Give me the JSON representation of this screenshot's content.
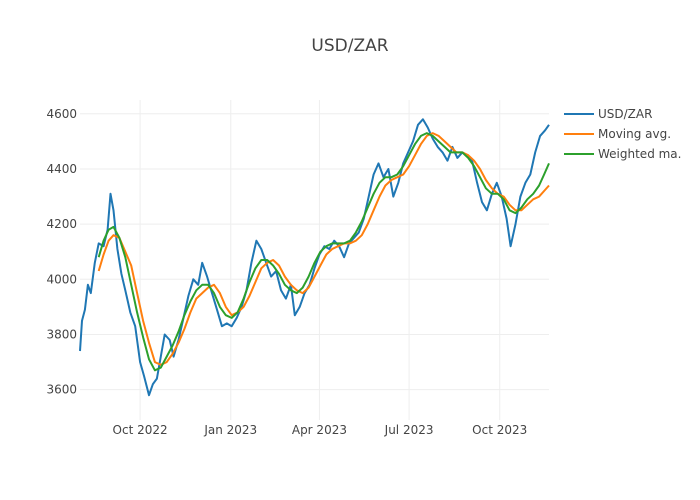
{
  "chart_data": {
    "type": "line",
    "title": "USD/ZAR",
    "xlabel": "",
    "ylabel": "",
    "x_range": [
      "2022-08-01",
      "2023-11-20"
    ],
    "ylim": [
      3490,
      4650
    ],
    "grid": true,
    "legend_position": "top-right",
    "x_ticks": [
      {
        "date": "2022-10-01",
        "label": "Oct 2022"
      },
      {
        "date": "2023-01-01",
        "label": "Jan 2023"
      },
      {
        "date": "2023-04-01",
        "label": "Apr 2023"
      },
      {
        "date": "2023-07-01",
        "label": "Jul 2023"
      },
      {
        "date": "2023-10-01",
        "label": "Oct 2023"
      }
    ],
    "y_ticks": [
      3600,
      3800,
      4000,
      4200,
      4400,
      4600
    ],
    "series": [
      {
        "name": "USD/ZAR",
        "color": "#1f77b4",
        "points": [
          [
            "2022-08-01",
            3740
          ],
          [
            "2022-08-03",
            3850
          ],
          [
            "2022-08-06",
            3890
          ],
          [
            "2022-08-09",
            3980
          ],
          [
            "2022-08-12",
            3950
          ],
          [
            "2022-08-16",
            4060
          ],
          [
            "2022-08-20",
            4130
          ],
          [
            "2022-08-25",
            4120
          ],
          [
            "2022-08-29",
            4180
          ],
          [
            "2022-09-01",
            4310
          ],
          [
            "2022-09-04",
            4250
          ],
          [
            "2022-09-08",
            4110
          ],
          [
            "2022-09-12",
            4020
          ],
          [
            "2022-09-16",
            3960
          ],
          [
            "2022-09-21",
            3880
          ],
          [
            "2022-09-26",
            3830
          ],
          [
            "2022-10-01",
            3700
          ],
          [
            "2022-10-05",
            3650
          ],
          [
            "2022-10-10",
            3580
          ],
          [
            "2022-10-14",
            3620
          ],
          [
            "2022-10-18",
            3640
          ],
          [
            "2022-10-22",
            3720
          ],
          [
            "2022-10-26",
            3800
          ],
          [
            "2022-10-31",
            3780
          ],
          [
            "2022-11-04",
            3720
          ],
          [
            "2022-11-09",
            3780
          ],
          [
            "2022-11-14",
            3860
          ],
          [
            "2022-11-19",
            3940
          ],
          [
            "2022-11-24",
            4000
          ],
          [
            "2022-11-29",
            3980
          ],
          [
            "2022-12-03",
            4060
          ],
          [
            "2022-12-08",
            4010
          ],
          [
            "2022-12-13",
            3950
          ],
          [
            "2022-12-18",
            3890
          ],
          [
            "2022-12-23",
            3830
          ],
          [
            "2022-12-28",
            3840
          ],
          [
            "2023-01-02",
            3830
          ],
          [
            "2023-01-07",
            3860
          ],
          [
            "2023-01-12",
            3900
          ],
          [
            "2023-01-17",
            3960
          ],
          [
            "2023-01-22",
            4060
          ],
          [
            "2023-01-27",
            4140
          ],
          [
            "2023-02-01",
            4110
          ],
          [
            "2023-02-06",
            4060
          ],
          [
            "2023-02-11",
            4010
          ],
          [
            "2023-02-16",
            4030
          ],
          [
            "2023-02-21",
            3960
          ],
          [
            "2023-02-26",
            3930
          ],
          [
            "2023-03-03",
            3980
          ],
          [
            "2023-03-07",
            3870
          ],
          [
            "2023-03-12",
            3900
          ],
          [
            "2023-03-17",
            3950
          ],
          [
            "2023-03-22",
            3980
          ],
          [
            "2023-03-27",
            4040
          ],
          [
            "2023-04-01",
            4090
          ],
          [
            "2023-04-06",
            4120
          ],
          [
            "2023-04-11",
            4110
          ],
          [
            "2023-04-16",
            4140
          ],
          [
            "2023-04-21",
            4120
          ],
          [
            "2023-04-26",
            4080
          ],
          [
            "2023-05-01",
            4130
          ],
          [
            "2023-05-06",
            4150
          ],
          [
            "2023-05-11",
            4170
          ],
          [
            "2023-05-16",
            4220
          ],
          [
            "2023-05-21",
            4300
          ],
          [
            "2023-05-26",
            4380
          ],
          [
            "2023-05-31",
            4420
          ],
          [
            "2023-06-05",
            4370
          ],
          [
            "2023-06-10",
            4400
          ],
          [
            "2023-06-15",
            4300
          ],
          [
            "2023-06-20",
            4350
          ],
          [
            "2023-06-25",
            4420
          ],
          [
            "2023-06-30",
            4460
          ],
          [
            "2023-07-05",
            4500
          ],
          [
            "2023-07-10",
            4560
          ],
          [
            "2023-07-15",
            4580
          ],
          [
            "2023-07-20",
            4550
          ],
          [
            "2023-07-25",
            4510
          ],
          [
            "2023-07-30",
            4480
          ],
          [
            "2023-08-04",
            4460
          ],
          [
            "2023-08-09",
            4430
          ],
          [
            "2023-08-14",
            4480
          ],
          [
            "2023-08-19",
            4440
          ],
          [
            "2023-08-24",
            4460
          ],
          [
            "2023-08-29",
            4450
          ],
          [
            "2023-09-03",
            4430
          ],
          [
            "2023-09-08",
            4350
          ],
          [
            "2023-09-13",
            4280
          ],
          [
            "2023-09-18",
            4250
          ],
          [
            "2023-09-23",
            4310
          ],
          [
            "2023-09-28",
            4350
          ],
          [
            "2023-10-03",
            4300
          ],
          [
            "2023-10-08",
            4220
          ],
          [
            "2023-10-12",
            4120
          ],
          [
            "2023-10-17",
            4200
          ],
          [
            "2023-10-22",
            4300
          ],
          [
            "2023-10-27",
            4350
          ],
          [
            "2023-11-01",
            4380
          ],
          [
            "2023-11-06",
            4460
          ],
          [
            "2023-11-11",
            4520
          ],
          [
            "2023-11-16",
            4540
          ],
          [
            "2023-11-20",
            4560
          ]
        ]
      },
      {
        "name": "Moving avg.",
        "color": "#ff7f0e",
        "points": [
          [
            "2022-08-20",
            4030
          ],
          [
            "2022-08-25",
            4090
          ],
          [
            "2022-08-30",
            4140
          ],
          [
            "2022-09-04",
            4160
          ],
          [
            "2022-09-10",
            4150
          ],
          [
            "2022-09-16",
            4100
          ],
          [
            "2022-09-22",
            4050
          ],
          [
            "2022-09-28",
            3950
          ],
          [
            "2022-10-04",
            3850
          ],
          [
            "2022-10-10",
            3770
          ],
          [
            "2022-10-16",
            3700
          ],
          [
            "2022-10-22",
            3690
          ],
          [
            "2022-10-28",
            3700
          ],
          [
            "2022-11-03",
            3730
          ],
          [
            "2022-11-09",
            3770
          ],
          [
            "2022-11-15",
            3820
          ],
          [
            "2022-11-21",
            3880
          ],
          [
            "2022-11-27",
            3930
          ],
          [
            "2022-12-03",
            3950
          ],
          [
            "2022-12-09",
            3970
          ],
          [
            "2022-12-15",
            3980
          ],
          [
            "2022-12-21",
            3950
          ],
          [
            "2022-12-27",
            3900
          ],
          [
            "2023-01-02",
            3870
          ],
          [
            "2023-01-08",
            3880
          ],
          [
            "2023-01-14",
            3900
          ],
          [
            "2023-01-20",
            3940
          ],
          [
            "2023-01-26",
            3990
          ],
          [
            "2023-02-01",
            4040
          ],
          [
            "2023-02-07",
            4060
          ],
          [
            "2023-02-13",
            4070
          ],
          [
            "2023-02-19",
            4050
          ],
          [
            "2023-02-25",
            4010
          ],
          [
            "2023-03-03",
            3980
          ],
          [
            "2023-03-09",
            3960
          ],
          [
            "2023-03-15",
            3950
          ],
          [
            "2023-03-21",
            3970
          ],
          [
            "2023-03-27",
            4010
          ],
          [
            "2023-04-02",
            4050
          ],
          [
            "2023-04-08",
            4090
          ],
          [
            "2023-04-14",
            4110
          ],
          [
            "2023-04-20",
            4120
          ],
          [
            "2023-04-26",
            4130
          ],
          [
            "2023-05-02",
            4130
          ],
          [
            "2023-05-08",
            4140
          ],
          [
            "2023-05-14",
            4160
          ],
          [
            "2023-05-20",
            4200
          ],
          [
            "2023-05-26",
            4250
          ],
          [
            "2023-06-01",
            4300
          ],
          [
            "2023-06-07",
            4340
          ],
          [
            "2023-06-13",
            4360
          ],
          [
            "2023-06-19",
            4370
          ],
          [
            "2023-06-25",
            4380
          ],
          [
            "2023-07-01",
            4410
          ],
          [
            "2023-07-07",
            4450
          ],
          [
            "2023-07-13",
            4490
          ],
          [
            "2023-07-19",
            4520
          ],
          [
            "2023-07-25",
            4530
          ],
          [
            "2023-07-31",
            4520
          ],
          [
            "2023-08-06",
            4500
          ],
          [
            "2023-08-12",
            4480
          ],
          [
            "2023-08-18",
            4460
          ],
          [
            "2023-08-24",
            4460
          ],
          [
            "2023-08-30",
            4450
          ],
          [
            "2023-09-05",
            4430
          ],
          [
            "2023-09-11",
            4400
          ],
          [
            "2023-09-17",
            4360
          ],
          [
            "2023-09-23",
            4330
          ],
          [
            "2023-09-29",
            4310
          ],
          [
            "2023-10-05",
            4300
          ],
          [
            "2023-10-11",
            4270
          ],
          [
            "2023-10-17",
            4250
          ],
          [
            "2023-10-23",
            4250
          ],
          [
            "2023-10-29",
            4270
          ],
          [
            "2023-11-04",
            4290
          ],
          [
            "2023-11-10",
            4300
          ],
          [
            "2023-11-15",
            4320
          ],
          [
            "2023-11-20",
            4340
          ]
        ]
      },
      {
        "name": "Weighted ma.",
        "color": "#2ca02c",
        "points": [
          [
            "2022-08-20",
            4080
          ],
          [
            "2022-08-25",
            4140
          ],
          [
            "2022-08-30",
            4180
          ],
          [
            "2022-09-04",
            4190
          ],
          [
            "2022-09-10",
            4150
          ],
          [
            "2022-09-16",
            4080
          ],
          [
            "2022-09-22",
            3980
          ],
          [
            "2022-09-28",
            3880
          ],
          [
            "2022-10-04",
            3790
          ],
          [
            "2022-10-10",
            3710
          ],
          [
            "2022-10-16",
            3670
          ],
          [
            "2022-10-22",
            3680
          ],
          [
            "2022-10-28",
            3720
          ],
          [
            "2022-11-03",
            3760
          ],
          [
            "2022-11-09",
            3810
          ],
          [
            "2022-11-15",
            3870
          ],
          [
            "2022-11-21",
            3920
          ],
          [
            "2022-11-27",
            3960
          ],
          [
            "2022-12-03",
            3980
          ],
          [
            "2022-12-09",
            3980
          ],
          [
            "2022-12-15",
            3950
          ],
          [
            "2022-12-21",
            3900
          ],
          [
            "2022-12-27",
            3870
          ],
          [
            "2023-01-02",
            3860
          ],
          [
            "2023-01-08",
            3880
          ],
          [
            "2023-01-14",
            3930
          ],
          [
            "2023-01-20",
            3990
          ],
          [
            "2023-01-26",
            4040
          ],
          [
            "2023-02-01",
            4070
          ],
          [
            "2023-02-07",
            4070
          ],
          [
            "2023-02-13",
            4050
          ],
          [
            "2023-02-19",
            4020
          ],
          [
            "2023-02-25",
            3980
          ],
          [
            "2023-03-03",
            3960
          ],
          [
            "2023-03-09",
            3950
          ],
          [
            "2023-03-15",
            3970
          ],
          [
            "2023-03-21",
            4010
          ],
          [
            "2023-03-27",
            4060
          ],
          [
            "2023-04-02",
            4100
          ],
          [
            "2023-04-08",
            4120
          ],
          [
            "2023-04-14",
            4130
          ],
          [
            "2023-04-20",
            4130
          ],
          [
            "2023-04-26",
            4130
          ],
          [
            "2023-05-02",
            4140
          ],
          [
            "2023-05-08",
            4170
          ],
          [
            "2023-05-14",
            4210
          ],
          [
            "2023-05-20",
            4260
          ],
          [
            "2023-05-26",
            4310
          ],
          [
            "2023-06-01",
            4350
          ],
          [
            "2023-06-07",
            4370
          ],
          [
            "2023-06-13",
            4370
          ],
          [
            "2023-06-19",
            4380
          ],
          [
            "2023-06-25",
            4410
          ],
          [
            "2023-07-01",
            4450
          ],
          [
            "2023-07-07",
            4490
          ],
          [
            "2023-07-13",
            4520
          ],
          [
            "2023-07-19",
            4530
          ],
          [
            "2023-07-25",
            4520
          ],
          [
            "2023-07-31",
            4500
          ],
          [
            "2023-08-06",
            4480
          ],
          [
            "2023-08-12",
            4460
          ],
          [
            "2023-08-18",
            4460
          ],
          [
            "2023-08-24",
            4460
          ],
          [
            "2023-08-30",
            4440
          ],
          [
            "2023-09-05",
            4410
          ],
          [
            "2023-09-11",
            4370
          ],
          [
            "2023-09-17",
            4330
          ],
          [
            "2023-09-23",
            4310
          ],
          [
            "2023-09-29",
            4310
          ],
          [
            "2023-10-05",
            4290
          ],
          [
            "2023-10-11",
            4250
          ],
          [
            "2023-10-17",
            4240
          ],
          [
            "2023-10-23",
            4260
          ],
          [
            "2023-10-29",
            4290
          ],
          [
            "2023-11-04",
            4310
          ],
          [
            "2023-11-10",
            4340
          ],
          [
            "2023-11-15",
            4380
          ],
          [
            "2023-11-20",
            4420
          ]
        ]
      }
    ]
  }
}
